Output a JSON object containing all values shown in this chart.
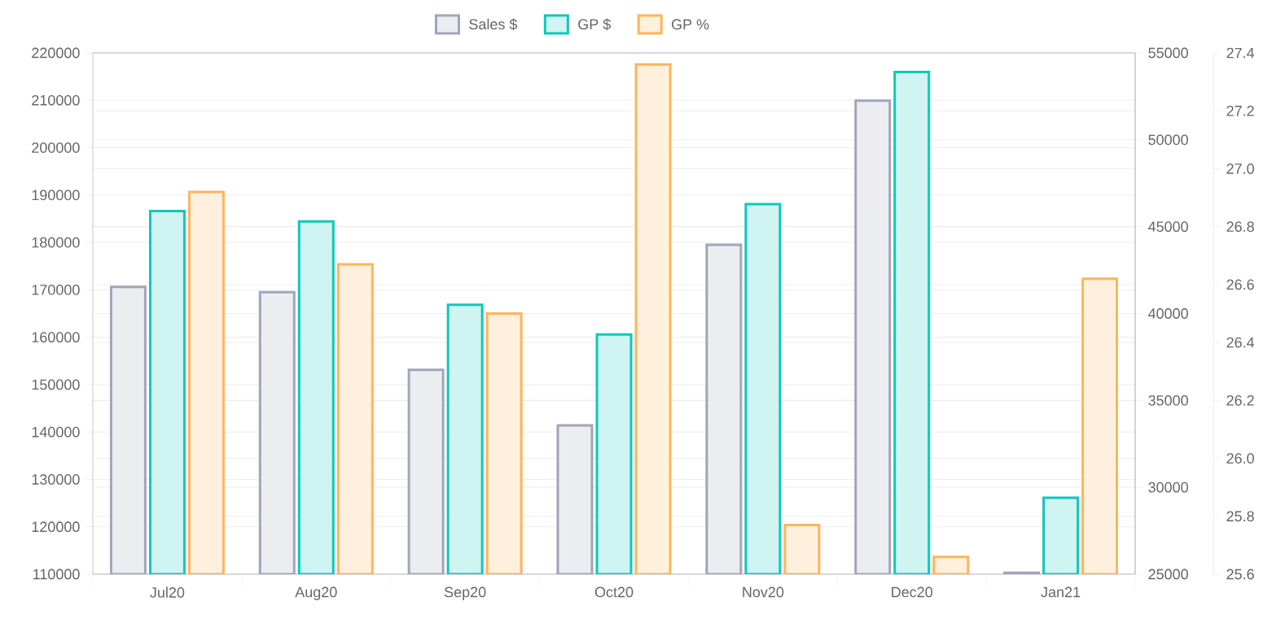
{
  "chart_data": {
    "type": "bar",
    "categories": [
      "Jul20",
      "Aug20",
      "Sep20",
      "Oct20",
      "Nov20",
      "Dec20",
      "Jan21"
    ],
    "series": [
      {
        "name": "Sales $",
        "color": "#ecedf1",
        "axis": "y",
        "values": [
          170600,
          169500,
          153100,
          141400,
          179500,
          209900,
          110300
        ]
      },
      {
        "name": "GP $",
        "color": "#cff4f1",
        "axis": "y2",
        "values": [
          45900,
          45300,
          40500,
          38800,
          46300,
          53900,
          29400
        ]
      },
      {
        "name": "GP %",
        "color": "#fff0de",
        "axis": "y3",
        "values": [
          26.92,
          26.67,
          26.5,
          27.36,
          25.77,
          25.66,
          26.62
        ]
      }
    ],
    "ylim": [
      110000,
      220000
    ],
    "yticks": [
      110000,
      120000,
      130000,
      140000,
      150000,
      160000,
      170000,
      180000,
      190000,
      200000,
      210000,
      220000
    ],
    "y2lim": [
      25000,
      55000
    ],
    "y2ticks": [
      25000,
      30000,
      35000,
      40000,
      45000,
      50000,
      55000
    ],
    "y3lim": [
      25.6,
      27.4
    ],
    "y3ticks": [
      25.6,
      25.8,
      {
        "value": 26,
        "label": "26.0"
      },
      26.2,
      26.4,
      26.6,
      26.8,
      {
        "value": 27,
        "label": "27.0"
      },
      27.2,
      27.4
    ],
    "grid": true,
    "legend": "top"
  }
}
